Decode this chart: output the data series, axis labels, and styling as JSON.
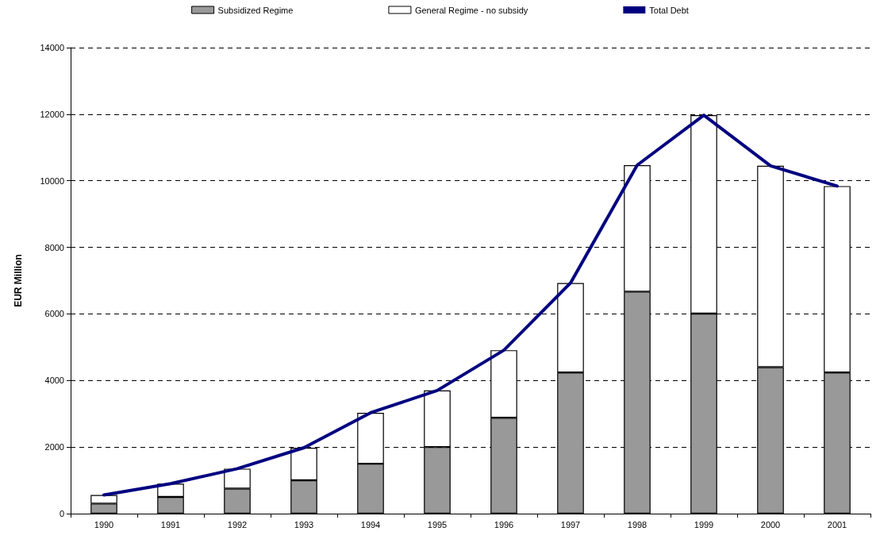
{
  "chart_data": {
    "type": "bar",
    "ylabel": "EUR Million",
    "stacked": true,
    "categories": [
      "1990",
      "1991",
      "1992",
      "1993",
      "1994",
      "1995",
      "1996",
      "1997",
      "1998",
      "1999",
      "2000",
      "2001"
    ],
    "series": [
      {
        "name": "Subsidized Regime",
        "color": "#999999",
        "values": [
          300,
          500,
          750,
          1000,
          1500,
          2000,
          2880,
          4240,
          6670,
          6010,
          4400,
          4240
        ]
      },
      {
        "name": "General Regime - no subsidy",
        "color": "#ffffff",
        "values": [
          260,
          400,
          600,
          980,
          1530,
          1700,
          2030,
          2690,
          3800,
          5960,
          6050,
          5600
        ]
      },
      {
        "name": "Total Debt",
        "type": "line",
        "color": "#000080",
        "values": [
          560,
          900,
          1350,
          1980,
          3030,
          3700,
          4910,
          6930,
          10470,
          11970,
          10450,
          9840
        ]
      }
    ],
    "ylim": [
      0,
      14000
    ],
    "yticks": [
      0,
      2000,
      4000,
      6000,
      8000,
      10000,
      12000,
      14000
    ],
    "grid": "y",
    "legend": "top",
    "marker": "none"
  }
}
